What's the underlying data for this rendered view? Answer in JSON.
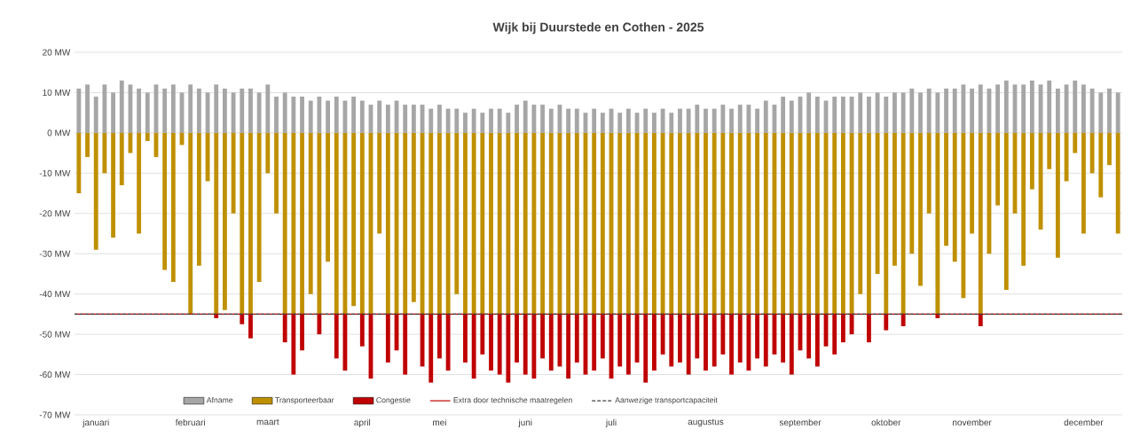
{
  "chart_data": {
    "type": "bar",
    "stacked": true,
    "title": "Wijk bij Duurstede en Cothen - 2025",
    "categories": [
      null,
      null,
      "januari",
      null,
      null,
      null,
      null,
      null,
      null,
      null,
      null,
      null,
      null,
      "februari",
      null,
      null,
      null,
      null,
      null,
      null,
      null,
      null,
      "maart",
      null,
      null,
      null,
      null,
      null,
      null,
      null,
      null,
      null,
      null,
      "april",
      null,
      null,
      null,
      null,
      null,
      null,
      null,
      null,
      "mei",
      null,
      null,
      null,
      null,
      null,
      null,
      null,
      null,
      null,
      "juni",
      null,
      null,
      null,
      null,
      null,
      null,
      null,
      null,
      null,
      "juli",
      null,
      null,
      null,
      null,
      null,
      null,
      null,
      null,
      null,
      null,
      "augustus",
      null,
      null,
      null,
      null,
      null,
      null,
      null,
      null,
      null,
      null,
      "september",
      null,
      null,
      null,
      null,
      null,
      null,
      null,
      null,
      null,
      "oktober",
      null,
      null,
      null,
      null,
      null,
      null,
      null,
      null,
      null,
      "november",
      null,
      null,
      null,
      null,
      null,
      null,
      null,
      null,
      null,
      null,
      null,
      null,
      "december",
      null,
      null,
      null,
      null
    ],
    "series": [
      {
        "name": "Afname",
        "color": "#a6a6a6",
        "values": [
          11,
          12,
          9,
          12,
          10,
          13,
          12,
          11,
          10,
          12,
          11,
          12,
          10,
          12,
          11,
          10,
          12,
          11,
          10,
          11,
          11,
          10,
          12,
          9,
          10,
          9,
          9,
          8,
          9,
          8,
          9,
          8,
          9,
          8,
          7,
          8,
          7,
          8,
          7,
          7,
          7,
          6,
          7,
          6,
          6,
          5,
          6,
          5,
          6,
          6,
          5,
          7,
          8,
          7,
          7,
          6,
          7,
          6,
          6,
          5,
          6,
          5,
          6,
          5,
          6,
          5,
          6,
          5,
          6,
          5,
          6,
          6,
          7,
          6,
          6,
          7,
          6,
          7,
          7,
          6,
          8,
          7,
          9,
          8,
          9,
          10,
          9,
          8,
          9,
          9,
          9,
          10,
          9,
          10,
          9,
          10,
          10,
          11,
          10,
          11,
          10,
          11,
          11,
          12,
          11,
          12,
          11,
          12,
          13,
          12,
          12,
          13,
          12,
          13,
          11,
          12,
          13,
          12,
          11,
          10,
          11,
          10
        ]
      },
      {
        "name": "Transporteerbaar",
        "color": "#bf9000",
        "values": [
          -15,
          -6,
          -29,
          -10,
          -26,
          -13,
          -5,
          -25,
          -2,
          -6,
          -34,
          -37,
          -3,
          -45,
          -33,
          -12,
          -45,
          -44,
          -20,
          -45,
          -45,
          -37,
          -10,
          -20,
          -45,
          -45,
          -45,
          -40,
          -45,
          -32,
          -45,
          -45,
          -43,
          -45,
          -45,
          -25,
          -45,
          -45,
          -45,
          -42,
          -45,
          -45,
          -45,
          -45,
          -40,
          -45,
          -45,
          -45,
          -45,
          -45,
          -45,
          -45,
          -45,
          -45,
          -45,
          -45,
          -45,
          -45,
          -45,
          -45,
          -45,
          -45,
          -45,
          -45,
          -45,
          -45,
          -45,
          -45,
          -45,
          -45,
          -45,
          -45,
          -45,
          -45,
          -45,
          -45,
          -45,
          -45,
          -45,
          -45,
          -45,
          -45,
          -45,
          -45,
          -45,
          -45,
          -45,
          -45,
          -45,
          -45,
          -45,
          -40,
          -45,
          -35,
          -45,
          -33,
          -45,
          -30,
          -38,
          -20,
          -45,
          -28,
          -32,
          -41,
          -25,
          -45,
          -30,
          -18,
          -39,
          -20,
          -33,
          -14,
          -24,
          -9,
          -31,
          -12,
          -5,
          -25,
          -10,
          -16,
          -8,
          -25
        ]
      },
      {
        "name": "Congestie",
        "color": "#c00000",
        "values": [
          null,
          null,
          null,
          null,
          null,
          null,
          null,
          null,
          null,
          null,
          null,
          null,
          null,
          null,
          null,
          null,
          -1,
          null,
          null,
          -2.5,
          -6,
          null,
          null,
          null,
          -7,
          -15,
          -9,
          null,
          -5,
          null,
          -11,
          -14,
          null,
          -8,
          -16,
          null,
          -12,
          -9,
          -15,
          null,
          -13,
          -17,
          -11,
          -14,
          null,
          -12,
          -16,
          -10,
          -14,
          -15,
          -17,
          -12,
          -15,
          -16,
          -11,
          -14,
          -13,
          -16,
          -12,
          -15,
          -14,
          -11,
          -16,
          -13,
          -15,
          -12,
          -17,
          -14,
          -10,
          -13,
          -12,
          -15,
          -11,
          -14,
          -13,
          -10,
          -15,
          -12,
          -14,
          -11,
          -13,
          -10,
          -12,
          -15,
          -9,
          -11,
          -13,
          -8,
          -10,
          -7,
          -5,
          null,
          -7,
          null,
          -4,
          null,
          -3,
          null,
          null,
          null,
          -1,
          null,
          null,
          null,
          null,
          -3,
          null,
          null,
          null,
          null,
          null,
          null,
          null,
          null,
          null,
          null,
          null,
          null,
          null,
          null,
          null,
          null
        ]
      }
    ],
    "ylim": [
      -70,
      20
    ],
    "yticks": [
      {
        "value": 20,
        "label": "20 MW"
      },
      {
        "value": 10,
        "label": "10 MW"
      },
      {
        "value": 0,
        "label": "0 MW"
      },
      {
        "value": -10,
        "label": "-10 MW"
      },
      {
        "value": -20,
        "label": "-20 MW"
      },
      {
        "value": -30,
        "label": "-30 MW"
      },
      {
        "value": -40,
        "label": "-40 MW"
      },
      {
        "value": -50,
        "label": "-50 MW"
      },
      {
        "value": -60,
        "label": "-60 MW"
      },
      {
        "value": -70,
        "label": "-70 MW"
      }
    ],
    "grid": "y",
    "legend": "bottom",
    "ref_lines": [
      {
        "axis": "y",
        "value": -45,
        "label": "Extra door technische maatregelen",
        "color": "#c00000",
        "line_style": "solid"
      },
      {
        "axis": "y",
        "value": -45,
        "label": "Aanwezige transportcapaciteit",
        "color": "#404040",
        "line_style": "dashed"
      }
    ]
  }
}
